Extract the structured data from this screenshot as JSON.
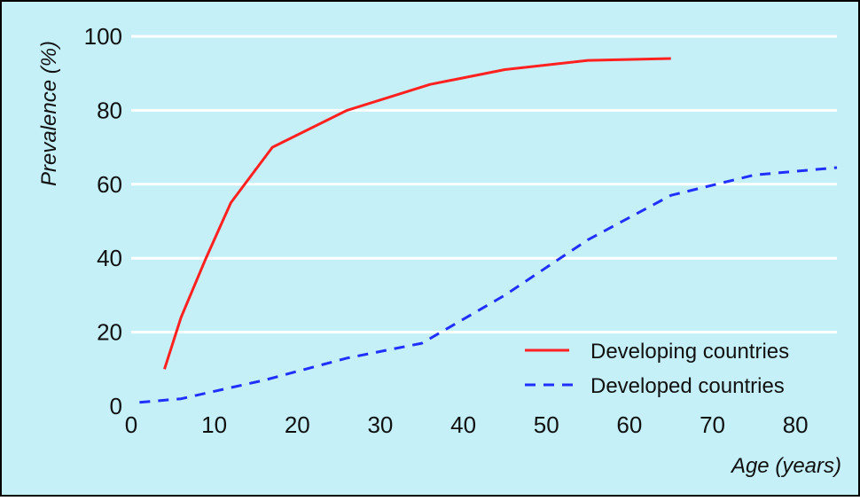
{
  "chart_data": {
    "type": "line",
    "xlabel": "Age (years)",
    "ylabel": "Prevalence (%)",
    "xlim": [
      0,
      85
    ],
    "ylim": [
      0,
      100
    ],
    "xticks": [
      0,
      10,
      20,
      30,
      40,
      50,
      60,
      70,
      80
    ],
    "yticks": [
      0,
      20,
      40,
      60,
      80,
      100
    ],
    "grid": "horizontal",
    "legend_position": "bottom-right",
    "colors": {
      "background": "#c5f0f8",
      "grid": "#ffffff",
      "frame": "#000000",
      "developing": "#ff2020",
      "developed": "#2030ff"
    },
    "series": [
      {
        "name": "Developing countries",
        "style": "solid",
        "x": [
          4,
          6,
          9,
          12,
          17,
          26,
          36,
          45,
          55,
          65
        ],
        "y": [
          10,
          24,
          40,
          55,
          70,
          80,
          87,
          91,
          93.5,
          94
        ]
      },
      {
        "name": "Developed countries",
        "style": "dashed",
        "x": [
          1,
          6,
          10,
          16,
          26,
          35,
          45,
          55,
          65,
          75,
          85
        ],
        "y": [
          1,
          2,
          4,
          7,
          13,
          17,
          30,
          45,
          57,
          62.5,
          64.5
        ]
      }
    ]
  }
}
